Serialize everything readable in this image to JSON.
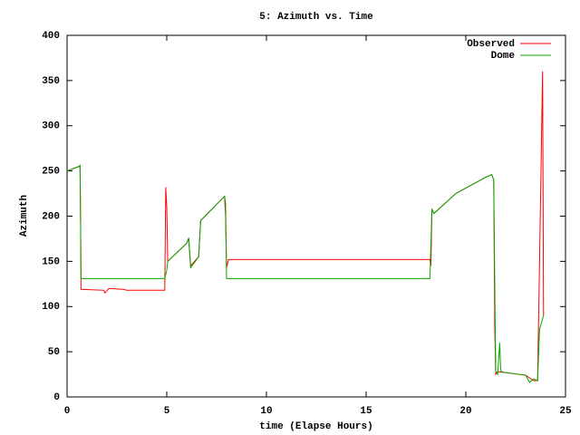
{
  "chart_data": {
    "type": "line",
    "title": "5: Azimuth vs. Time",
    "x_label": "time (Elapse Hours)",
    "y_label": "Azimuth",
    "xlim": [
      0,
      25
    ],
    "xticks": [
      0,
      5,
      10,
      15,
      20,
      25
    ],
    "ylim": [
      0,
      400
    ],
    "yticks": [
      0,
      50,
      100,
      150,
      200,
      250,
      300,
      350,
      400
    ],
    "grid": false,
    "legend": "top-right",
    "series": [
      {
        "name": "Observed",
        "color": "#ff0000",
        "x": [
          0,
          0.6,
          0.65,
          0.68,
          0.7,
          1.85,
          1.9,
          2.1,
          2.8,
          3.0,
          4.9,
          4.95,
          5.0,
          5.05,
          6.0,
          6.1,
          6.2,
          6.6,
          6.7,
          7.9,
          7.95,
          8.0,
          8.1,
          18.2,
          18.25,
          18.3,
          18.4,
          19.5,
          21.0,
          21.3,
          21.4,
          21.45,
          21.5,
          21.6,
          22.0,
          23.0,
          23.4,
          23.6,
          23.7,
          23.8,
          23.85,
          23.9
        ],
        "values": [
          250,
          255,
          256,
          190,
          119,
          118,
          115,
          120,
          119,
          118,
          118,
          232,
          210,
          150,
          170,
          175,
          145,
          155,
          195,
          222,
          200,
          143,
          152,
          152,
          145,
          208,
          203,
          225,
          243,
          246,
          240,
          80,
          25,
          28,
          27,
          24,
          18,
          18,
          150,
          290,
          360,
          90
        ]
      },
      {
        "name": "Dome",
        "color": "#00aa00",
        "x": [
          0,
          0.6,
          0.65,
          0.68,
          0.7,
          4.9,
          5.0,
          5.05,
          6.0,
          6.1,
          6.2,
          6.6,
          6.7,
          7.9,
          7.95,
          8.0,
          18.2,
          18.25,
          18.3,
          18.4,
          19.5,
          21.0,
          21.3,
          21.4,
          21.45,
          21.5,
          21.6,
          21.7,
          21.75,
          21.8,
          22.0,
          23.0,
          23.2,
          23.4,
          23.6,
          23.7,
          23.9
        ],
        "values": [
          250,
          255,
          256,
          190,
          131,
          131,
          140,
          150,
          170,
          176,
          143,
          155,
          195,
          222,
          215,
          131,
          131,
          170,
          208,
          203,
          225,
          243,
          246,
          240,
          130,
          28,
          25,
          60,
          30,
          28,
          27,
          24,
          16,
          20,
          18,
          75,
          90
        ]
      }
    ]
  }
}
